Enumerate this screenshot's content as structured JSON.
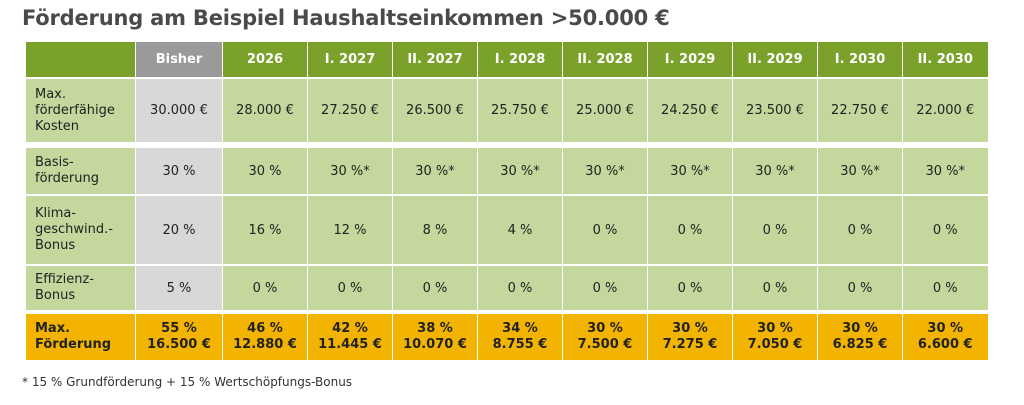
{
  "title": "Förderung am Beispiel Haushaltseinkommen >50.000 €",
  "columns": [
    "Bisher",
    "2026",
    "I. 2027",
    "II. 2027",
    "I. 2028",
    "II. 2028",
    "I. 2029",
    "II. 2029",
    "I. 2030",
    "II. 2030"
  ],
  "rows": {
    "kosten": {
      "label": [
        "Max.",
        "förderfähige",
        "Kosten"
      ],
      "values": [
        "30.000 €",
        "28.000 €",
        "27.250 €",
        "26.500 €",
        "25.750 €",
        "25.000 €",
        "24.250 €",
        "23.500 €",
        "22.750 €",
        "22.000 €"
      ]
    },
    "basis": {
      "label": [
        "Basis-",
        "förderung"
      ],
      "values": [
        "30 %",
        "30 %",
        "30 %*",
        "30 %*",
        "30 %*",
        "30 %*",
        "30 %*",
        "30 %*",
        "30 %*",
        "30 %*"
      ]
    },
    "klima": {
      "label": [
        "Klima-",
        "geschwind.-",
        "Bonus"
      ],
      "values": [
        "20 %",
        "16 %",
        "12 %",
        "8 %",
        "4 %",
        "0 %",
        "0 %",
        "0 %",
        "0 %",
        "0 %"
      ]
    },
    "effizienz": {
      "label": [
        "Effizienz-",
        "Bonus"
      ],
      "values": [
        "5 %",
        "0 %",
        "0 %",
        "0 %",
        "0 %",
        "0 %",
        "0 %",
        "0 %",
        "0 %",
        "0 %"
      ]
    },
    "max": {
      "label": [
        "Max.",
        "Förderung"
      ],
      "percent": [
        "55 %",
        "46 %",
        "42 %",
        "38 %",
        "34 %",
        "30 %",
        "30 %",
        "30 %",
        "30 %",
        "30 %"
      ],
      "amount": [
        "16.500 €",
        "12.880 €",
        "11.445 €",
        "10.070 €",
        "8.755 €",
        "7.500 €",
        "7.275 €",
        "7.050 €",
        "6.825 €",
        "6.600 €"
      ]
    }
  },
  "footnote": "*  15 % Grundförderung + 15 % Wertschöpfungs-Bonus",
  "colors": {
    "header_green": "#7aa22b",
    "header_bisher": "#9a9a9a",
    "row_green": "#c4d79c",
    "row_bisher": "#d8d8d8",
    "row_max": "#f2b400"
  }
}
